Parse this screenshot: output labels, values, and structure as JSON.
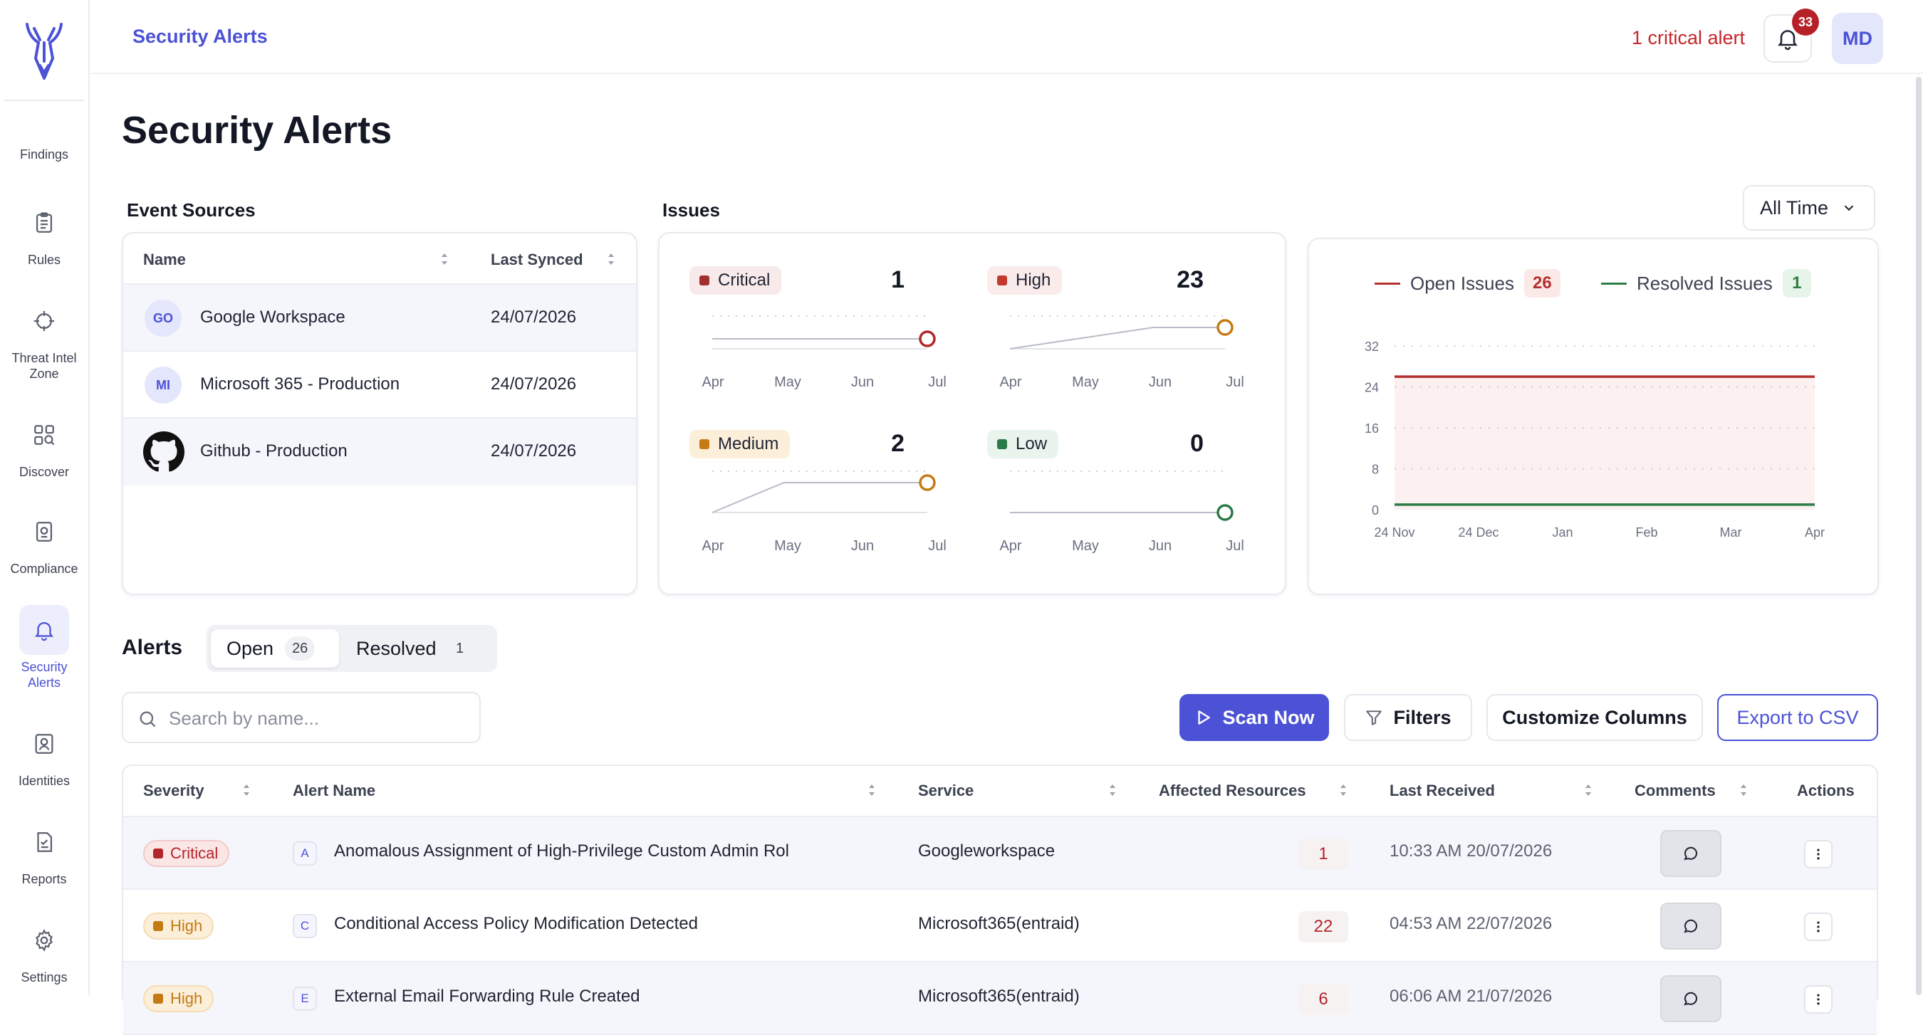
{
  "colors": {
    "accent": "#4b52d6",
    "critical": "#b3252b",
    "high_dot": "#c2392e",
    "medium_dot": "#c47a15",
    "low_dot": "#2a7a47",
    "open_line": "#b3312f",
    "resolved_line": "#2e7d46"
  },
  "sidebar": {
    "items": [
      {
        "label": "Findings",
        "icon": "findings-icon"
      },
      {
        "label": "Rules",
        "icon": "clipboard-icon"
      },
      {
        "label": "Threat Intel Zone",
        "icon": "crosshair-icon"
      },
      {
        "label": "Discover",
        "icon": "discover-icon"
      },
      {
        "label": "Compliance",
        "icon": "compliance-icon"
      },
      {
        "label": "Security Alerts",
        "icon": "bell-icon",
        "active": true
      },
      {
        "label": "Identities",
        "icon": "identity-icon"
      },
      {
        "label": "Reports",
        "icon": "report-icon"
      },
      {
        "label": "Settings",
        "icon": "gear-icon"
      }
    ]
  },
  "topbar": {
    "title": "Security Alerts",
    "critical_alert": "1 critical alert",
    "notification_count": "33",
    "user_initials": "MD"
  },
  "page": {
    "title": "Security Alerts"
  },
  "event_sources": {
    "title": "Event Sources",
    "columns": [
      "Name",
      "Last Synced"
    ],
    "rows": [
      {
        "initials": "GO",
        "name": "Google Workspace",
        "last_synced": "24/07/2026"
      },
      {
        "initials": "MI",
        "name": "Microsoft 365 - Production",
        "last_synced": "24/07/2026"
      },
      {
        "initials": "",
        "name": "Github - Production",
        "last_synced": "24/07/2026",
        "icon": "github-icon"
      }
    ]
  },
  "issues": {
    "title": "Issues",
    "months": [
      "Apr",
      "May",
      "Jun",
      "Jul"
    ],
    "severities": [
      {
        "label": "Critical",
        "count": "1",
        "trend": [
          1,
          1,
          1,
          1
        ]
      },
      {
        "label": "High",
        "count": "23",
        "trend": [
          22,
          22.5,
          23,
          23
        ]
      },
      {
        "label": "Medium",
        "count": "2",
        "trend": [
          0,
          2,
          2,
          2
        ]
      },
      {
        "label": "Low",
        "count": "0",
        "trend": [
          0,
          0,
          0,
          0
        ]
      }
    ]
  },
  "time_filter": {
    "selected": "All Time"
  },
  "trend_chart": {
    "legend": [
      {
        "label": "Open Issues",
        "count": "26"
      },
      {
        "label": "Resolved Issues",
        "count": "1"
      }
    ],
    "y_ticks": [
      "32",
      "24",
      "16",
      "8",
      "0"
    ],
    "x_ticks": [
      "24 Nov",
      "24 Dec",
      "Jan",
      "Feb",
      "Mar",
      "Apr"
    ]
  },
  "chart_data": {
    "type": "area",
    "x": [
      "24 Nov",
      "24 Dec",
      "Jan",
      "Feb",
      "Mar",
      "Apr"
    ],
    "series": [
      {
        "name": "Open Issues",
        "values": [
          26,
          26,
          26,
          26,
          26,
          26
        ]
      },
      {
        "name": "Resolved Issues",
        "values": [
          1,
          1,
          1,
          1,
          1,
          1
        ]
      }
    ],
    "ylim": [
      0,
      32
    ],
    "grid": true,
    "legend": "top"
  },
  "alerts": {
    "title": "Alerts",
    "tabs": [
      {
        "label": "Open",
        "count": "26"
      },
      {
        "label": "Resolved",
        "count": "1"
      }
    ],
    "search_placeholder": "Search by name...",
    "buttons": {
      "scan": "Scan Now",
      "filters": "Filters",
      "customize": "Customize Columns",
      "export": "Export to CSV"
    },
    "columns": [
      "Severity",
      "Alert Name",
      "Service",
      "Affected Resources",
      "Last Received",
      "Comments",
      "Actions"
    ],
    "rows": [
      {
        "severity": "Critical",
        "letter": "A",
        "name": "Anomalous Assignment of High-Privilege Custom Admin Rol",
        "service": "Googleworkspace",
        "affected": "1",
        "last_received": "10:33 AM 20/07/2026"
      },
      {
        "severity": "High",
        "letter": "C",
        "name": "Conditional Access Policy Modification Detected",
        "service": "Microsoft365(entraid)",
        "affected": "22",
        "last_received": "04:53 AM 22/07/2026"
      },
      {
        "severity": "High",
        "letter": "E",
        "name": "External Email Forwarding Rule Created",
        "service": "Microsoft365(entraid)",
        "affected": "6",
        "last_received": "06:06 AM 21/07/2026"
      }
    ]
  }
}
